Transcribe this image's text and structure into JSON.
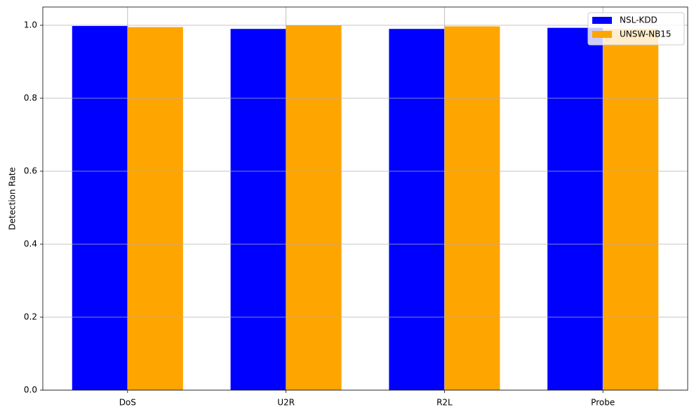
{
  "chart_data": {
    "type": "bar",
    "y_label": "Detection Rate",
    "categories": [
      "DoS",
      "U2R",
      "R2L",
      "Probe"
    ],
    "series": [
      {
        "name": "NSL-KDD",
        "color": "#0000ff",
        "values": [
          0.998,
          0.99,
          0.99,
          0.993
        ]
      },
      {
        "name": "UNSW-NB15",
        "color": "#ffa500",
        "values": [
          0.995,
          1.0,
          0.997,
          0.99
        ]
      }
    ],
    "ylim": [
      0,
      1.05
    ],
    "yticks": [
      {
        "value": 0,
        "label": "0.0"
      },
      0.2,
      0.4,
      0.6,
      0.8,
      {
        "value": 1,
        "label": "1.0"
      }
    ],
    "grid": true,
    "legend": "upper right"
  }
}
